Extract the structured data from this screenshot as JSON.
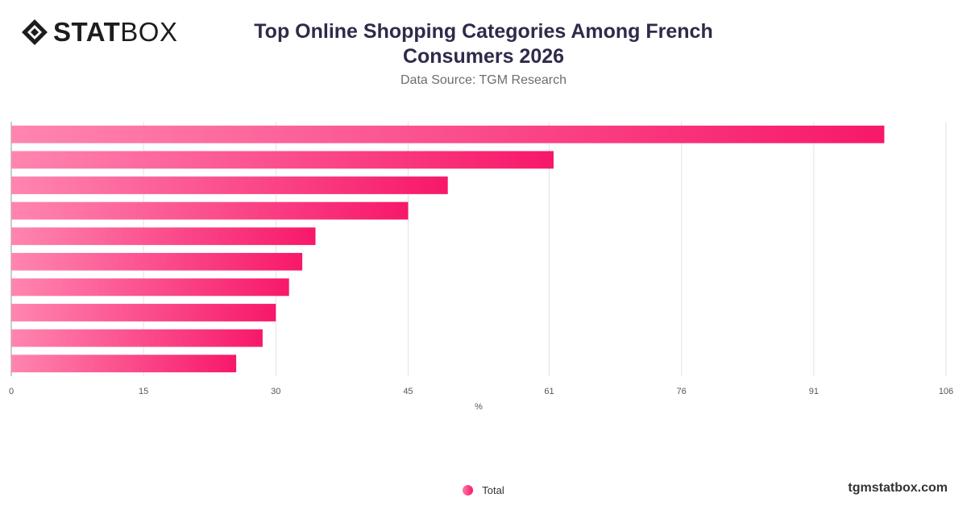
{
  "brand": {
    "logo_bold": "STAT",
    "logo_light": "BOX",
    "logo_icon": "statbox-diamond-icon"
  },
  "header": {
    "title": "Top Online Shopping Categories Among French Consumers 2026",
    "subtitle": "Data Source: TGM Research"
  },
  "footer": {
    "source": "tgmstatbox.com"
  },
  "colors": {
    "bar_start": "#ff85b0",
    "bar_end": "#f7186a",
    "grid": "#e2e2e2"
  },
  "chart_data": {
    "type": "bar",
    "orientation": "horizontal",
    "title": "Top Online Shopping Categories Among French Consumers 2026",
    "subtitle": "Data Source: TGM Research",
    "xlabel": "%",
    "ylabel": "",
    "xlim": [
      0,
      106
    ],
    "x_ticks": [
      0,
      15,
      30,
      45,
      61,
      76,
      91,
      106
    ],
    "grid": true,
    "legend": "bottom-center",
    "categories": [
      "",
      "",
      "",
      "",
      "",
      "",
      "",
      "",
      "",
      ""
    ],
    "series": [
      {
        "name": "Total",
        "values": [
          99,
          61.5,
          49.5,
          45,
          34.5,
          33,
          31.5,
          30,
          28.5,
          25.5
        ]
      }
    ]
  }
}
